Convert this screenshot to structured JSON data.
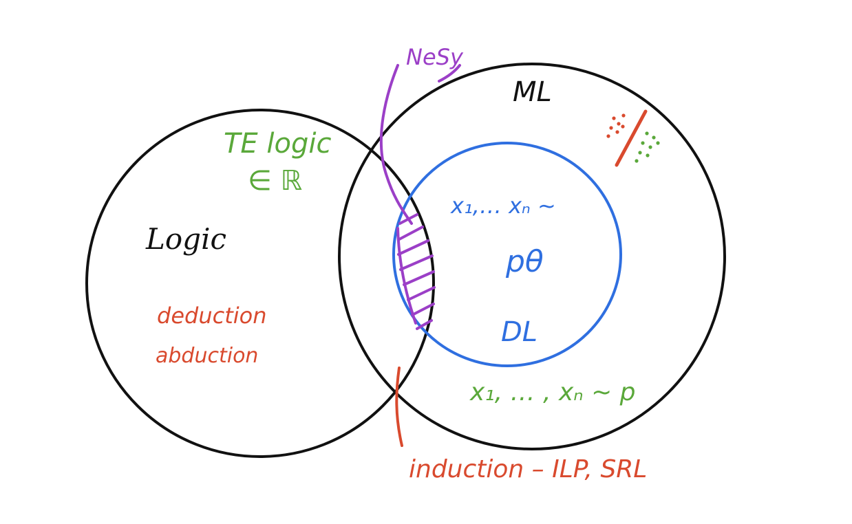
{
  "labels": {
    "logic": "Logic",
    "ml": "ML",
    "nesy": "NeSy",
    "dl": "DL",
    "te_logic": "TE logic",
    "in_r": "∈ ℝ",
    "deduction": "deduction",
    "abduction": "abduction",
    "induction": "induction – ILP, SRL",
    "samples_p_theta": "x₁,… xₙ ~",
    "p_theta": "pθ",
    "samples_p": "x₁, … , xₙ ~ p"
  },
  "colors": {
    "outline": "#111111",
    "blue": "#2f6fe0",
    "green": "#5aa83a",
    "red": "#d94a2e",
    "purple": "#9b3fc7"
  }
}
